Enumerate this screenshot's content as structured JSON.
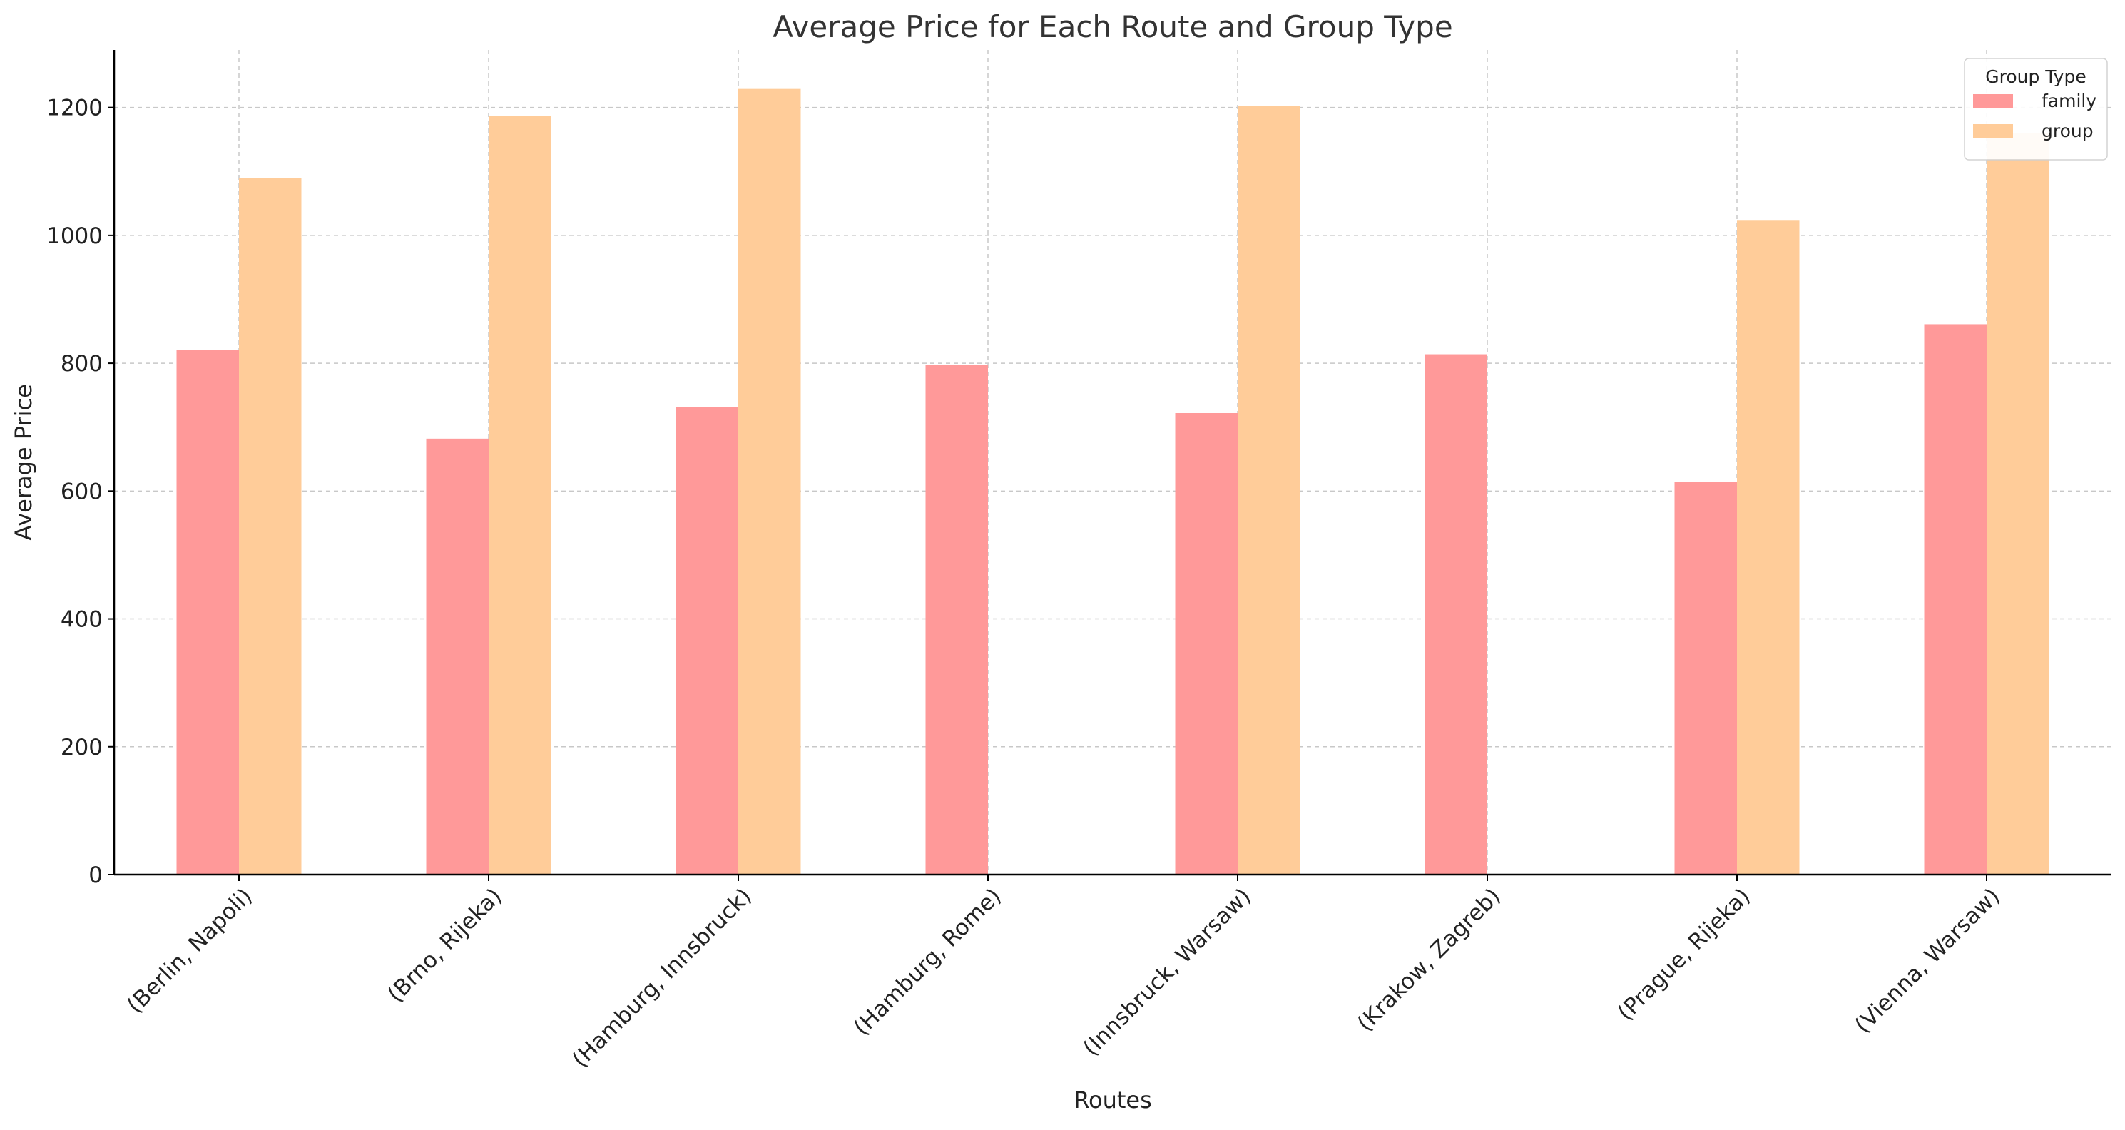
{
  "chart_data": {
    "type": "bar",
    "title": "Average Price for Each Route and Group Type",
    "xlabel": "Routes",
    "ylabel": "Average Price",
    "ylim": [
      0,
      1290
    ],
    "yticks": [
      0,
      200,
      400,
      600,
      800,
      1000,
      1200
    ],
    "grid": true,
    "legend": {
      "title": "Group Type",
      "placement": "top-right"
    },
    "categories": [
      "(Berlin, Napoli)",
      "(Brno, Rijeka)",
      "(Hamburg, Innsbruck)",
      "(Hamburg, Rome)",
      "(Innsbruck, Warsaw)",
      "(Krakow, Zagreb)",
      "(Prague, Rijeka)",
      "(Vienna, Warsaw)"
    ],
    "series": [
      {
        "name": "family",
        "color": "#ff9999",
        "values": [
          821,
          682,
          731,
          797,
          722,
          814,
          614,
          861
        ]
      },
      {
        "name": "group",
        "color": "#ffcc99",
        "values": [
          1090,
          1187,
          1229,
          null,
          1202,
          null,
          1023,
          1160
        ]
      }
    ]
  }
}
